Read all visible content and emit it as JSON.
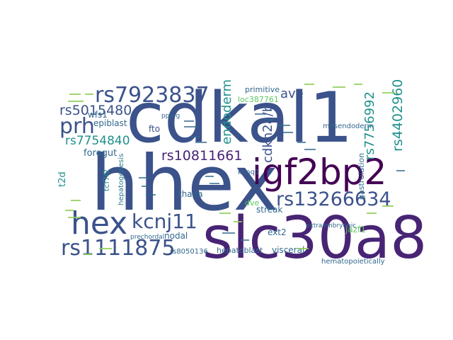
{
  "word_cloud": {
    "words": [
      {
        "text": "hhex",
        "color": "#3b528b"
      },
      {
        "text": "cdkal1",
        "color": "#3b528b"
      },
      {
        "text": "slc30a8",
        "color": "#482475"
      },
      {
        "text": "igf2bp2",
        "color": "#440154"
      },
      {
        "text": "hex",
        "color": "#3b528b"
      },
      {
        "text": "rs7923837",
        "color": "#3b528b"
      },
      {
        "text": "rs13266634",
        "color": "#3b528b"
      },
      {
        "text": "rs1111875",
        "color": "#3b528b"
      },
      {
        "text": "kcnj11",
        "color": "#3b528b"
      },
      {
        "text": "prh",
        "color": "#3b528b"
      },
      {
        "text": "rs10811661",
        "color": "#482475"
      },
      {
        "text": "rs5015480",
        "color": "#3b528b"
      },
      {
        "text": "rs7754840",
        "color": "#21918c"
      },
      {
        "text": "rs4402960",
        "color": "#21918c"
      },
      {
        "text": "rs7756992",
        "color": "#21918c"
      },
      {
        "text": "endoderm",
        "color": "#21918c"
      },
      {
        "text": "cdkn2a/b",
        "color": "#3b528b"
      },
      {
        "text": "ave",
        "color": "#3b528b"
      },
      {
        "text": "foregut",
        "color": "#31688e"
      },
      {
        "text": "fto",
        "color": "#3b528b"
      },
      {
        "text": "wfs1",
        "color": "#31688e"
      },
      {
        "text": "epiblast",
        "color": "#31688e"
      },
      {
        "text": "hepatogenesis",
        "color": "#2a788e"
      },
      {
        "text": "thada",
        "color": "#31688e"
      },
      {
        "text": "nodal",
        "color": "#31688e"
      },
      {
        "text": "prechordal",
        "color": "#31688e"
      },
      {
        "text": "ext2",
        "color": "#31688e"
      },
      {
        "text": "streak",
        "color": "#31688e"
      },
      {
        "text": "visceral",
        "color": "#31688e"
      },
      {
        "text": "hepatoblast",
        "color": "#31688e"
      },
      {
        "text": "hematopoietically",
        "color": "#31688e"
      },
      {
        "text": "gastrulation",
        "color": "#31688e"
      },
      {
        "text": "mesendoderm",
        "color": "#31688e"
      },
      {
        "text": "extraembryonic",
        "color": "#31688e"
      },
      {
        "text": "primitive",
        "color": "#31688e"
      },
      {
        "text": "loc387761",
        "color": "#5ec962"
      },
      {
        "text": "kcnq1",
        "color": "#31688e"
      },
      {
        "text": "jazf1",
        "color": "#5ec962"
      },
      {
        "text": "dve",
        "color": "#5ec962"
      },
      {
        "text": "tcf7l2",
        "color": "#21918c"
      },
      {
        "text": "t2d",
        "color": "#21918c"
      },
      {
        "text": "pparg",
        "color": "#31688e"
      },
      {
        "text": "rs8050136",
        "color": "#31688e"
      }
    ]
  }
}
